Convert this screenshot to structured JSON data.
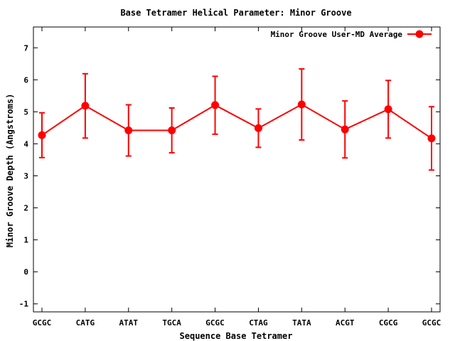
{
  "chart_data": {
    "type": "line",
    "title": "Base Tetramer Helical Parameter: Minor Groove",
    "xlabel": "Sequence Base Tetramer",
    "ylabel": "Minor Groove Depth (Angstroms)",
    "categories": [
      "GCGC",
      "CATG",
      "ATAT",
      "TGCA",
      "GCGC",
      "CTAG",
      "TATA",
      "ACGT",
      "CGCG",
      "GCGC"
    ],
    "ylim": [
      -1.25,
      7.65
    ],
    "yticks": [
      -1,
      0,
      1,
      2,
      3,
      4,
      5,
      6,
      7
    ],
    "grid": false,
    "legend_position": "top-right",
    "series": [
      {
        "name": "Minor Groove User-MD Average",
        "color": "#ff0000",
        "values": [
          4.27,
          5.19,
          4.42,
          4.42,
          5.21,
          4.49,
          5.23,
          4.45,
          5.08,
          4.17
        ],
        "error_low": [
          3.57,
          4.18,
          3.62,
          3.72,
          4.3,
          3.89,
          4.12,
          3.56,
          4.18,
          3.18
        ],
        "error_high": [
          4.97,
          6.19,
          5.22,
          5.12,
          6.11,
          5.09,
          6.34,
          5.34,
          5.98,
          5.16
        ]
      }
    ]
  }
}
